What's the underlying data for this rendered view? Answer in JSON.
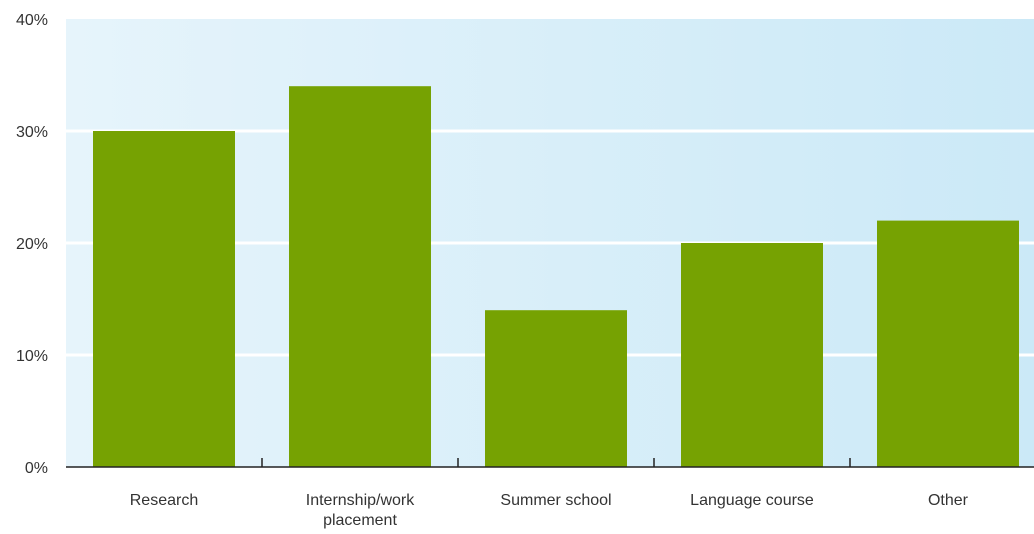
{
  "chart_data": {
    "type": "bar",
    "title": "",
    "xlabel": "",
    "ylabel": "",
    "categories": [
      "Research",
      "Internship/work placement",
      "Summer school",
      "Language course",
      "Other"
    ],
    "category_lines": [
      [
        "Research"
      ],
      [
        "Internship/work",
        "placement"
      ],
      [
        "Summer school"
      ],
      [
        "Language course"
      ],
      [
        "Other"
      ]
    ],
    "values": [
      30,
      34,
      14,
      20,
      22
    ],
    "ylim": [
      0,
      40
    ],
    "yticks": [
      0,
      10,
      20,
      30,
      40
    ],
    "ytick_labels": [
      "0%",
      "10%",
      "20%",
      "30%",
      "40%"
    ],
    "grid": true,
    "legend": "none",
    "colors": {
      "bar": "#76a202",
      "plot_bg_left": "#e6f4fb",
      "plot_bg_right": "#cbe9f7",
      "gridline": "#ffffff",
      "axis": "#222222"
    }
  }
}
